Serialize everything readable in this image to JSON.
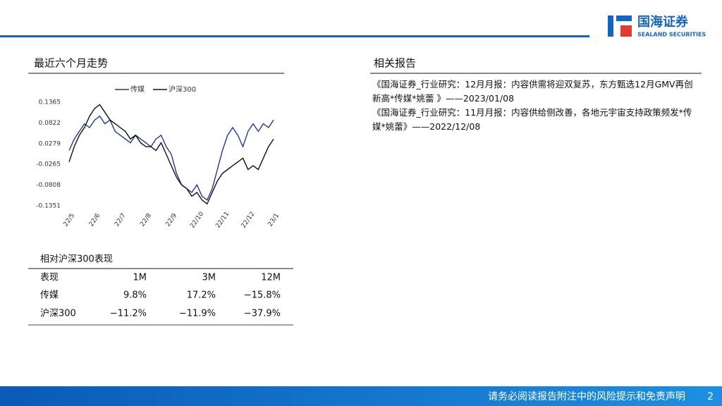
{
  "header": {
    "logo": "国海证券",
    "logo_en": "SEALAND SECURITIES"
  },
  "left_title": "最近六个月走势",
  "chart_data": {
    "type": "line",
    "categories": [
      "22/5",
      null,
      null,
      null,
      null,
      "22/6",
      null,
      null,
      null,
      null,
      "22/7",
      null,
      null,
      null,
      null,
      "22/8",
      null,
      null,
      null,
      null,
      "22/9",
      null,
      null,
      null,
      null,
      "22/10",
      null,
      null,
      null,
      null,
      "22/11",
      null,
      null,
      null,
      null,
      "22/12",
      null,
      null,
      null,
      null,
      "23/1"
    ],
    "series": [
      {
        "name": "传媒",
        "color": "#1f3a93",
        "values": [
          0.01,
          0.04,
          0.06,
          0.08,
          0.07,
          0.09,
          0.1,
          0.08,
          0.09,
          0.06,
          0.05,
          0.04,
          0.03,
          0.05,
          0.04,
          0.03,
          0.02,
          0.04,
          0.05,
          0.02,
          0.0,
          -0.05,
          -0.08,
          -0.09,
          -0.1,
          -0.08,
          -0.11,
          -0.12,
          -0.09,
          -0.04,
          0.01,
          0.05,
          0.07,
          0.05,
          0.02,
          0.06,
          0.08,
          0.06,
          0.08,
          0.07,
          0.09
        ]
      },
      {
        "name": "沪深300",
        "color": "#111111",
        "values": [
          -0.02,
          0.02,
          0.05,
          0.07,
          0.1,
          0.12,
          0.13,
          0.11,
          0.09,
          0.08,
          0.07,
          0.06,
          0.04,
          0.05,
          0.03,
          0.02,
          0.02,
          0.01,
          0.03,
          0.0,
          -0.03,
          -0.06,
          -0.08,
          -0.09,
          -0.11,
          -0.1,
          -0.12,
          -0.13,
          -0.1,
          -0.07,
          -0.05,
          -0.04,
          -0.03,
          -0.02,
          -0.01,
          -0.04,
          -0.03,
          -0.04,
          -0.01,
          0.02,
          0.04
        ]
      }
    ],
    "ylim": [
      -0.1351,
      0.1365
    ],
    "yticks": [
      0.1365,
      0.0822,
      0.0279,
      -0.0265,
      -0.0808,
      -0.1351
    ],
    "grid": false,
    "legend": "top"
  },
  "table": {
    "title": "相对沪深300表现",
    "header": [
      "表现",
      "1M",
      "3M",
      "12M"
    ],
    "rows": [
      [
        "传媒",
        "9.8%",
        "17.2%",
        "−15.8%"
      ],
      [
        "沪深300",
        "−11.2%",
        "−11.9%",
        "−37.9%"
      ]
    ]
  },
  "right": {
    "title": "相关报告",
    "reports": [
      "《国海证券_行业研究：12月月报：内容供需将迎双复苏，东方甄选12月GMV再创新高*传媒*姚蕾 》——2023/01/08",
      "《国海证券_行业研究：11月月报：内容供给侧改善，各地元宇宙支持政策频发*传媒*姚蕾》——2022/12/08"
    ]
  },
  "footer": {
    "disclaimer": "请务必阅读报告附注中的风险提示和免责声明",
    "page": "2"
  }
}
